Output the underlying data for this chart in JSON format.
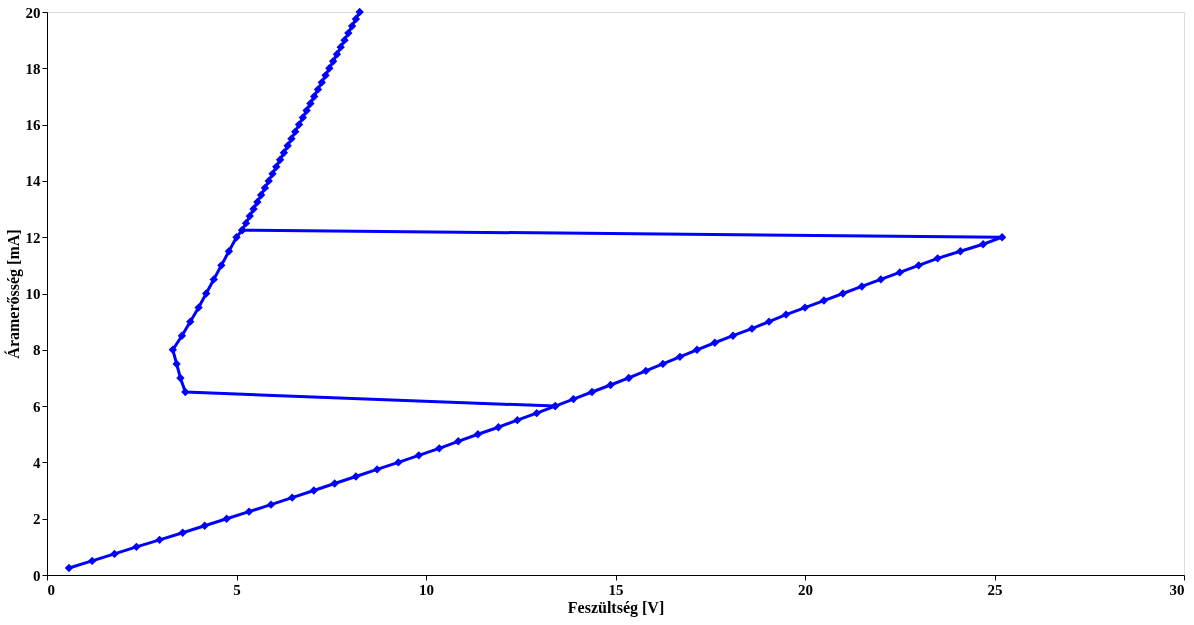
{
  "chart_data": {
    "type": "line",
    "xlabel": "Feszültség [V]",
    "ylabel": "Áramerősség [mA]",
    "xlim": [
      0,
      30
    ],
    "xticks": [
      0,
      5,
      10,
      15,
      20,
      25,
      30
    ],
    "ylim": [
      0,
      20
    ],
    "yticks": [
      0,
      2,
      4,
      6,
      8,
      10,
      12,
      14,
      16,
      18,
      20
    ],
    "grid": false,
    "marker": "diamond",
    "line_style": "solid",
    "series": [
      {
        "color": "#0000ff",
        "x": [
          0.58,
          1.19,
          1.78,
          2.36,
          2.97,
          3.58,
          4.16,
          4.74,
          5.33,
          5.91,
          6.47,
          7.04,
          7.59,
          8.15,
          8.71,
          9.27,
          9.81,
          10.35,
          10.85,
          11.37,
          11.91,
          12.41,
          12.92,
          13.41,
          13.89,
          14.38,
          14.87,
          15.35,
          15.8,
          16.25,
          16.7,
          17.15,
          17.62,
          18.1,
          18.6,
          19.05,
          19.5,
          20.0,
          20.5,
          21.0,
          21.5,
          22.0,
          22.5,
          23.0,
          23.5,
          24.1,
          24.7,
          25.2,
          5.15,
          5.25,
          5.35,
          5.45,
          5.55,
          5.65,
          5.75,
          5.85,
          5.95,
          6.05,
          6.15,
          6.25,
          6.35,
          6.45,
          6.55,
          6.65,
          6.75,
          6.85,
          6.95,
          7.05,
          7.15,
          7.25,
          7.35,
          7.45,
          7.55,
          7.65,
          7.75,
          7.85,
          7.95,
          8.05,
          8.15,
          8.25
        ],
        "values": [
          0.25,
          0.5,
          0.75,
          1.0,
          1.25,
          1.5,
          1.75,
          2.0,
          2.25,
          2.5,
          2.75,
          3.0,
          3.25,
          3.5,
          3.75,
          4.0,
          4.25,
          4.5,
          4.75,
          5.0,
          5.25,
          5.5,
          5.75,
          6.0,
          6.25,
          6.5,
          6.75,
          7.0,
          7.25,
          7.5,
          7.75,
          8.0,
          8.25,
          8.5,
          8.75,
          9.0,
          9.25,
          9.5,
          9.75,
          10.0,
          10.25,
          10.5,
          10.75,
          11.0,
          11.25,
          11.5,
          11.75,
          12.0,
          12.25,
          12.5,
          12.75,
          13.0,
          13.25,
          13.5,
          13.75,
          14.0,
          14.25,
          14.5,
          14.75,
          15.0,
          15.25,
          15.5,
          15.75,
          16.0,
          16.25,
          16.5,
          16.75,
          17.0,
          17.25,
          17.5,
          17.75,
          18.0,
          18.25,
          18.5,
          18.75,
          19.0,
          19.25,
          19.5,
          19.75,
          20.0
        ]
      },
      {
        "color": "#0000ff",
        "x": [
          5.15,
          5.0,
          4.8,
          4.6,
          4.4,
          4.2,
          4.0,
          3.78,
          3.56,
          3.32,
          3.42,
          3.52,
          3.65,
          13.41
        ],
        "values": [
          12.25,
          12.0,
          11.5,
          11.0,
          10.5,
          10.0,
          9.5,
          9.0,
          8.5,
          8.0,
          7.5,
          7.0,
          6.5,
          6.0
        ]
      }
    ]
  }
}
